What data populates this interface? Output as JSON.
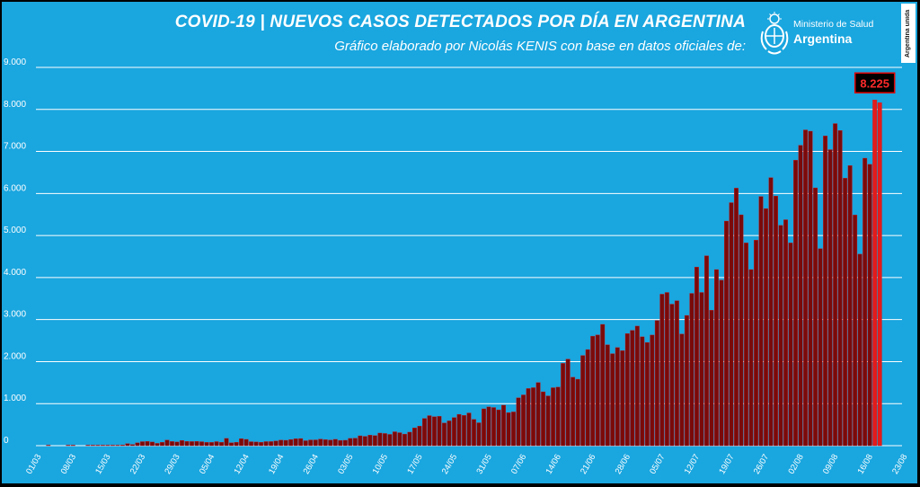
{
  "header": {
    "title": "COVID-19  |  NUEVOS CASOS DETECTADOS POR DÍA EN ARGENTINA",
    "subtitle": "Gráfico elaborado por Nicolás KENIS con base en datos oficiales de:",
    "ministry_line1": "Ministerio de Salud",
    "ministry_line2": "Argentina",
    "badge": "Argentina unida"
  },
  "colors": {
    "background": "#1aa6df",
    "bar_fill": "#7a0a0a",
    "bar_stroke": "#d11a1a",
    "highlight_bar": "#e31b1b",
    "label_bg": "#000000",
    "label_text": "#ff2a2a",
    "label_border": "#e00000"
  },
  "chart_data": {
    "type": "bar",
    "title": "",
    "xlabel": "",
    "ylabel": "",
    "ylim": [
      0,
      9000
    ],
    "y_ticks": [
      0,
      1000,
      2000,
      3000,
      4000,
      5000,
      6000,
      7000,
      8000,
      9000
    ],
    "y_tick_labels": [
      "0",
      "1.000",
      "2.000",
      "3.000",
      "4.000",
      "5.000",
      "6.000",
      "7.000",
      "8.000",
      "9.000"
    ],
    "grid": true,
    "x_tick_labels": [
      "01/03",
      "08/03",
      "15/03",
      "22/03",
      "29/03",
      "05/04",
      "12/04",
      "19/04",
      "26/04",
      "03/05",
      "10/05",
      "17/05",
      "24/05",
      "31/05",
      "07/06",
      "14/06",
      "21/06",
      "28/06",
      "05/07",
      "12/07",
      "19/07",
      "26/07",
      "02/08",
      "09/08",
      "16/08",
      "23/08"
    ],
    "x_tick_every_days": 7,
    "start_label": "01/03",
    "highlight_label": "8.225",
    "highlight_value": 8225,
    "values": [
      0,
      0,
      1,
      0,
      0,
      0,
      1,
      1,
      0,
      0,
      2,
      2,
      1,
      5,
      3,
      3,
      10,
      17,
      48,
      28,
      67,
      96,
      101,
      87,
      55,
      80,
      133,
      99,
      88,
      125,
      101,
      98,
      101,
      95,
      78,
      78,
      96,
      80,
      173,
      69,
      81,
      167,
      150,
      95,
      88,
      81,
      97,
      98,
      112,
      132,
      128,
      147,
      164,
      170,
      118,
      137,
      138,
      157,
      143,
      135,
      151,
      126,
      129,
      173,
      179,
      235,
      222,
      252,
      240,
      300,
      290,
      268,
      331,
      309,
      276,
      322,
      424,
      466,
      649,
      715,
      690,
      698,
      539,
      590,
      670,
      746,
      720,
      779,
      625,
      545,
      877,
      922,
      908,
      853,
      963,
      786,
      803,
      1140,
      1208,
      1360,
      1380,
      1503,
      1282,
      1185,
      1379,
      1393,
      1958,
      2060,
      1628,
      1581,
      2146,
      2287,
      2606,
      2635,
      2886,
      2401,
      2189,
      2335,
      2262,
      2667,
      2744,
      2845,
      2590,
      2456,
      2632,
      2979,
      3604,
      3645,
      3367,
      3449,
      2657,
      3099,
      3623,
      4250,
      3645,
      4518,
      3223,
      4190,
      3937,
      5344,
      5782,
      6127,
      5493,
      4824,
      4190,
      4890,
      5929,
      5641,
      6377,
      5939,
      5241,
      5376,
      4824,
      6792,
      7147,
      7513,
      7482,
      6134,
      4688,
      7369,
      7043,
      7663,
      7498,
      6365,
      6663,
      5488,
      4557,
      6840,
      6693,
      8225,
      8159
    ]
  }
}
